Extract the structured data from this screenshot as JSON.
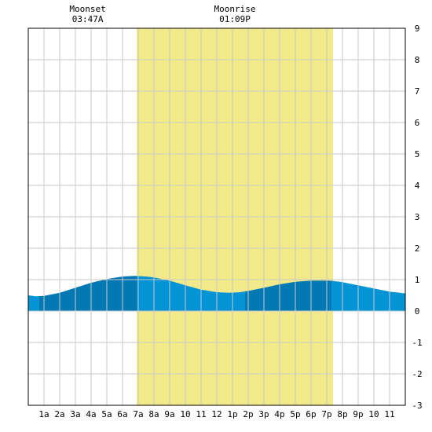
{
  "chart_data": {
    "type": "area",
    "title": "",
    "xlabel": "",
    "ylabel": "",
    "xlim": [
      0,
      24
    ],
    "ylim": [
      -3,
      9
    ],
    "grid": true,
    "x_tick_labels": [
      "1a",
      "2a",
      "3a",
      "4a",
      "5a",
      "6a",
      "7a",
      "8a",
      "9a",
      "10",
      "11",
      "12",
      "1p",
      "2p",
      "3p",
      "4p",
      "5p",
      "6p",
      "7p",
      "8p",
      "9p",
      "10",
      "11"
    ],
    "y_tick_labels": [
      "-3",
      "-2",
      "-1",
      "0",
      "1",
      "2",
      "3",
      "4",
      "5",
      "6",
      "7",
      "8",
      "9"
    ],
    "daylight": {
      "start": 6.9,
      "end": 19.4
    },
    "moon_events": [
      {
        "label": "Moonset",
        "time": "03:47A",
        "hour": 3.78
      },
      {
        "label": "Moonrise",
        "time": "01:09P",
        "hour": 13.15
      }
    ],
    "tide_series": {
      "x": [
        0,
        0.5,
        1,
        2,
        3,
        4,
        5,
        6,
        6.8,
        7.5,
        8,
        9,
        10,
        11,
        12,
        12.8,
        13.5,
        14,
        15,
        16,
        17,
        18,
        19,
        19.4,
        20,
        21,
        22,
        23,
        24
      ],
      "y": [
        0.5,
        0.47,
        0.48,
        0.58,
        0.74,
        0.9,
        1.02,
        1.1,
        1.12,
        1.1,
        1.07,
        0.97,
        0.82,
        0.68,
        0.6,
        0.58,
        0.6,
        0.64,
        0.74,
        0.85,
        0.93,
        0.97,
        0.97,
        0.96,
        0.92,
        0.82,
        0.72,
        0.62,
        0.56
      ]
    },
    "tide_bands": [
      0.7,
      6.9,
      13.8,
      19.3
    ],
    "colors": {
      "daylight": "#f2ea8a",
      "tide_light": "#0494d6",
      "tide_dark": "#0279b3",
      "grid": "#c8c8c8"
    }
  }
}
